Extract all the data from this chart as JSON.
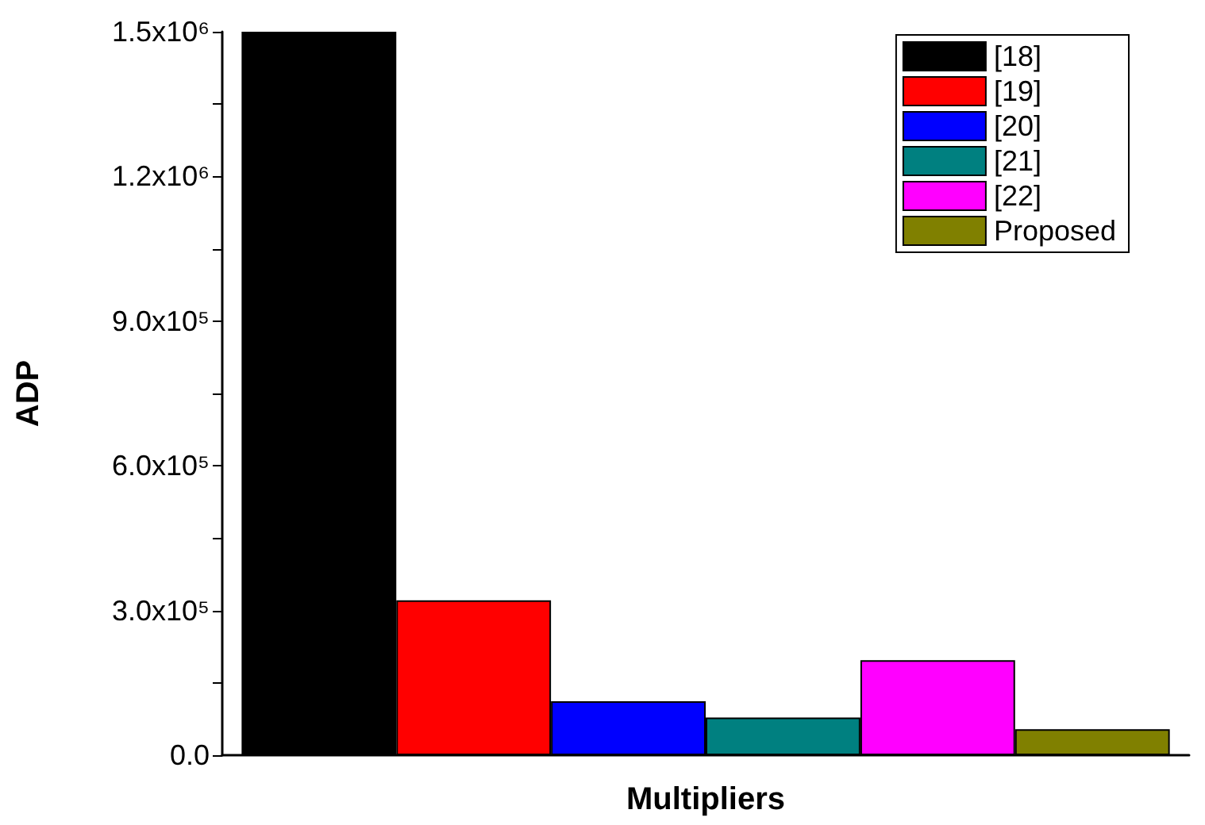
{
  "chart_data": {
    "type": "bar",
    "xlabel": "Multipliers",
    "ylabel": "ADP",
    "categories": [
      null
    ],
    "series": [
      {
        "name": "[18]",
        "color": "#000000",
        "values": [
          1500000
        ]
      },
      {
        "name": "[19]",
        "color": "#ff0000",
        "values": [
          321000
        ]
      },
      {
        "name": "[20]",
        "color": "#0000ff",
        "values": [
          112000
        ]
      },
      {
        "name": "[21]",
        "color": "#008080",
        "values": [
          78000
        ]
      },
      {
        "name": "[22]",
        "color": "#ff00ff",
        "values": [
          197000
        ]
      },
      {
        "name": "Proposed",
        "color": "#808000",
        "values": [
          54000
        ]
      }
    ],
    "ylim": [
      0,
      1500000
    ],
    "yticks": [
      {
        "value": 0,
        "label": "0.0"
      },
      {
        "value": 150000,
        "label": null
      },
      {
        "value": 300000,
        "label": "3.0x10⁵"
      },
      {
        "value": 450000,
        "label": null
      },
      {
        "value": 600000,
        "label": "6.0x10⁵"
      },
      {
        "value": 750000,
        "label": null
      },
      {
        "value": 900000,
        "label": "9.0x10⁵"
      },
      {
        "value": 1050000,
        "label": null
      },
      {
        "value": 1200000,
        "label": "1.2x10⁶"
      },
      {
        "value": 1350000,
        "label": null
      },
      {
        "value": 1500000,
        "label": "1.5x10⁶"
      }
    ],
    "grid": false,
    "legend": "top right"
  }
}
